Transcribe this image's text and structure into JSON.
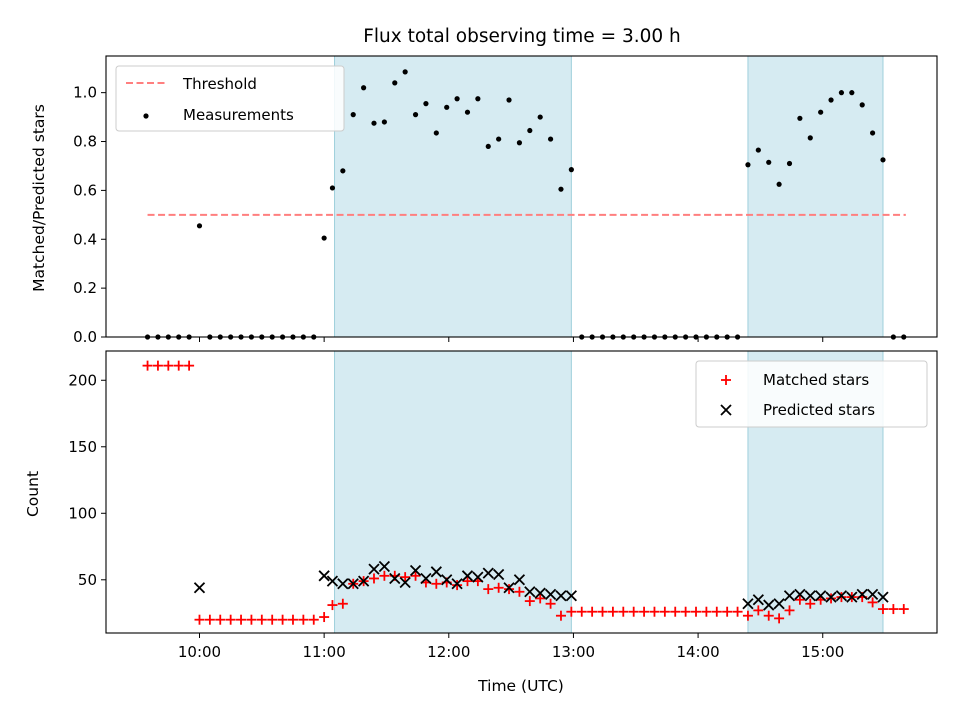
{
  "chart_data": [
    {
      "type": "scatter",
      "panel": "top",
      "title": "Flux total observing time = 3.00 h",
      "xlabel": "",
      "ylabel": "Matched/Predicted stars",
      "xlim": [
        "09:15",
        "15:55"
      ],
      "ylim": [
        0,
        1.15
      ],
      "yticks": [
        "0.0",
        "0.2",
        "0.4",
        "0.6",
        "0.8",
        "1.0"
      ],
      "xticks": [
        "10:00",
        "11:00",
        "12:00",
        "13:00",
        "14:00",
        "15:00"
      ],
      "grid": false,
      "legend": "top-left",
      "shaded_intervals": [
        [
          "11:05",
          "12:59"
        ],
        [
          "14:24",
          "15:29"
        ]
      ],
      "threshold": {
        "name": "Threshold",
        "value": 0.5,
        "x_range": [
          "09:35",
          "15:40"
        ],
        "color": "#ff7f7f"
      },
      "series": [
        {
          "name": "Measurements",
          "color": "#000000",
          "points": [
            [
              "09:35",
              0
            ],
            [
              "09:40",
              0
            ],
            [
              "09:45",
              0
            ],
            [
              "09:50",
              0
            ],
            [
              "09:55",
              0
            ],
            [
              "10:00",
              0.455
            ],
            [
              "10:05",
              0
            ],
            [
              "10:10",
              0
            ],
            [
              "10:15",
              0
            ],
            [
              "10:20",
              0
            ],
            [
              "10:25",
              0
            ],
            [
              "10:30",
              0
            ],
            [
              "10:35",
              0
            ],
            [
              "10:40",
              0
            ],
            [
              "10:45",
              0
            ],
            [
              "10:50",
              0
            ],
            [
              "10:55",
              0
            ],
            [
              "11:00",
              0.405
            ],
            [
              "11:04",
              0.61
            ],
            [
              "11:09",
              0.68
            ],
            [
              "11:14",
              0.91
            ],
            [
              "11:19",
              1.02
            ],
            [
              "11:24",
              0.875
            ],
            [
              "11:29",
              0.88
            ],
            [
              "11:34",
              1.04
            ],
            [
              "11:39",
              1.085
            ],
            [
              "11:44",
              0.91
            ],
            [
              "11:49",
              0.955
            ],
            [
              "11:54",
              0.835
            ],
            [
              "11:59",
              0.94
            ],
            [
              "12:04",
              0.975
            ],
            [
              "12:09",
              0.92
            ],
            [
              "12:14",
              0.975
            ],
            [
              "12:19",
              0.78
            ],
            [
              "12:24",
              0.81
            ],
            [
              "12:29",
              0.97
            ],
            [
              "12:34",
              0.795
            ],
            [
              "12:39",
              0.845
            ],
            [
              "12:44",
              0.9
            ],
            [
              "12:49",
              0.81
            ],
            [
              "12:54",
              0.605
            ],
            [
              "12:59",
              0.685
            ],
            [
              "13:04",
              0
            ],
            [
              "13:09",
              0
            ],
            [
              "13:14",
              0
            ],
            [
              "13:19",
              0
            ],
            [
              "13:24",
              0
            ],
            [
              "13:29",
              0
            ],
            [
              "13:34",
              0
            ],
            [
              "13:39",
              0
            ],
            [
              "13:44",
              0
            ],
            [
              "13:49",
              0
            ],
            [
              "13:54",
              0
            ],
            [
              "13:59",
              0
            ],
            [
              "14:04",
              0
            ],
            [
              "14:09",
              0
            ],
            [
              "14:14",
              0
            ],
            [
              "14:19",
              0
            ],
            [
              "14:24",
              0.705
            ],
            [
              "14:29",
              0.765
            ],
            [
              "14:34",
              0.715
            ],
            [
              "14:39",
              0.625
            ],
            [
              "14:44",
              0.71
            ],
            [
              "14:49",
              0.895
            ],
            [
              "14:54",
              0.815
            ],
            [
              "14:59",
              0.92
            ],
            [
              "15:04",
              0.97
            ],
            [
              "15:09",
              1.0
            ],
            [
              "15:14",
              1.0
            ],
            [
              "15:19",
              0.95
            ],
            [
              "15:24",
              0.835
            ],
            [
              "15:29",
              0.725
            ],
            [
              "15:34",
              0
            ],
            [
              "15:39",
              0
            ]
          ]
        }
      ]
    },
    {
      "type": "scatter",
      "panel": "bottom",
      "title": "",
      "xlabel": "Time (UTC)",
      "ylabel": "Count",
      "xlim": [
        "09:15",
        "15:55"
      ],
      "ylim": [
        10,
        222
      ],
      "yticks": [
        "50",
        "100",
        "150",
        "200"
      ],
      "xticks": [
        "10:00",
        "11:00",
        "12:00",
        "13:00",
        "14:00",
        "15:00"
      ],
      "grid": false,
      "legend": "top-right",
      "shaded_intervals": [
        [
          "11:05",
          "12:59"
        ],
        [
          "14:24",
          "15:29"
        ]
      ],
      "series": [
        {
          "name": "Matched stars",
          "marker": "plus",
          "color": "#ff0000",
          "points": [
            [
              "09:35",
              211
            ],
            [
              "09:40",
              211
            ],
            [
              "09:45",
              211
            ],
            [
              "09:50",
              211
            ],
            [
              "09:55",
              211
            ],
            [
              "10:00",
              20
            ],
            [
              "10:05",
              20
            ],
            [
              "10:10",
              20
            ],
            [
              "10:15",
              20
            ],
            [
              "10:20",
              20
            ],
            [
              "10:25",
              20
            ],
            [
              "10:30",
              20
            ],
            [
              "10:35",
              20
            ],
            [
              "10:40",
              20
            ],
            [
              "10:45",
              20
            ],
            [
              "10:50",
              20
            ],
            [
              "10:55",
              20
            ],
            [
              "11:00",
              22
            ],
            [
              "11:04",
              31
            ],
            [
              "11:09",
              32
            ],
            [
              "11:14",
              47
            ],
            [
              "11:19",
              49
            ],
            [
              "11:24",
              51
            ],
            [
              "11:29",
              53
            ],
            [
              "11:34",
              53
            ],
            [
              "11:39",
              52
            ],
            [
              "11:44",
              53
            ],
            [
              "11:49",
              48
            ],
            [
              "11:54",
              47
            ],
            [
              "11:59",
              48
            ],
            [
              "12:04",
              46
            ],
            [
              "12:09",
              49
            ],
            [
              "12:14",
              49
            ],
            [
              "12:19",
              43
            ],
            [
              "12:24",
              44
            ],
            [
              "12:29",
              43
            ],
            [
              "12:34",
              41
            ],
            [
              "12:39",
              34
            ],
            [
              "12:44",
              36
            ],
            [
              "12:49",
              32
            ],
            [
              "12:54",
              23
            ],
            [
              "12:59",
              26
            ],
            [
              "13:04",
              26
            ],
            [
              "13:09",
              26
            ],
            [
              "13:14",
              26
            ],
            [
              "13:19",
              26
            ],
            [
              "13:24",
              26
            ],
            [
              "13:29",
              26
            ],
            [
              "13:34",
              26
            ],
            [
              "13:39",
              26
            ],
            [
              "13:44",
              26
            ],
            [
              "13:49",
              26
            ],
            [
              "13:54",
              26
            ],
            [
              "13:59",
              26
            ],
            [
              "14:04",
              26
            ],
            [
              "14:09",
              26
            ],
            [
              "14:14",
              26
            ],
            [
              "14:19",
              26
            ],
            [
              "14:24",
              23
            ],
            [
              "14:29",
              27
            ],
            [
              "14:34",
              23
            ],
            [
              "14:39",
              21
            ],
            [
              "14:44",
              27
            ],
            [
              "14:49",
              35
            ],
            [
              "14:54",
              32
            ],
            [
              "14:59",
              35
            ],
            [
              "15:04",
              36
            ],
            [
              "15:09",
              37
            ],
            [
              "15:14",
              37
            ],
            [
              "15:19",
              37
            ],
            [
              "15:24",
              33
            ],
            [
              "15:29",
              28
            ],
            [
              "15:34",
              28
            ],
            [
              "15:39",
              28
            ]
          ]
        },
        {
          "name": "Predicted stars",
          "marker": "x",
          "color": "#000000",
          "points": [
            [
              "10:00",
              44
            ],
            [
              "11:00",
              53
            ],
            [
              "11:04",
              49
            ],
            [
              "11:09",
              47
            ],
            [
              "11:14",
              47
            ],
            [
              "11:19",
              49
            ],
            [
              "11:24",
              58
            ],
            [
              "11:29",
              60
            ],
            [
              "11:34",
              51
            ],
            [
              "11:39",
              48
            ],
            [
              "11:44",
              57
            ],
            [
              "11:49",
              51
            ],
            [
              "11:54",
              56
            ],
            [
              "11:59",
              50
            ],
            [
              "12:04",
              47
            ],
            [
              "12:09",
              53
            ],
            [
              "12:14",
              52
            ],
            [
              "12:19",
              55
            ],
            [
              "12:24",
              54
            ],
            [
              "12:29",
              44
            ],
            [
              "12:34",
              50
            ],
            [
              "12:39",
              41
            ],
            [
              "12:44",
              40
            ],
            [
              "12:49",
              39
            ],
            [
              "12:54",
              38
            ],
            [
              "12:59",
              38
            ],
            [
              "14:24",
              32
            ],
            [
              "14:29",
              35
            ],
            [
              "14:34",
              31
            ],
            [
              "14:39",
              32
            ],
            [
              "14:44",
              38
            ],
            [
              "14:49",
              39
            ],
            [
              "14:54",
              38
            ],
            [
              "14:59",
              38
            ],
            [
              "15:04",
              37
            ],
            [
              "15:09",
              38
            ],
            [
              "15:14",
              37
            ],
            [
              "15:19",
              39
            ],
            [
              "15:24",
              39
            ],
            [
              "15:29",
              37
            ]
          ]
        }
      ]
    }
  ],
  "colors": {
    "shade": "#add8e6",
    "shade_edge": "#9fd0dc"
  }
}
